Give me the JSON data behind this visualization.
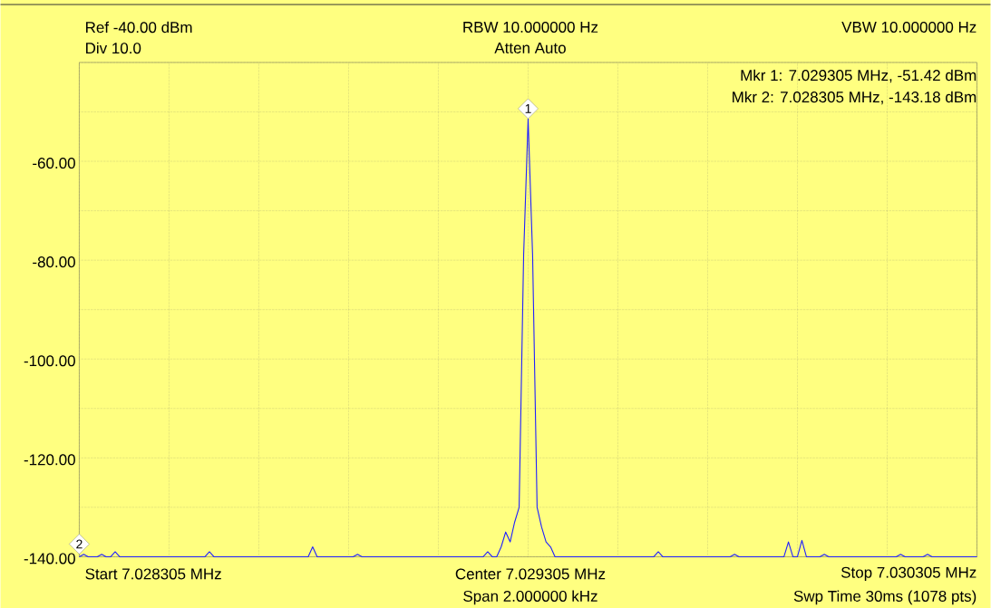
{
  "chart_data": {
    "type": "line",
    "categories": [
      null,
      null,
      null,
      null,
      null,
      null,
      null,
      null,
      null,
      null,
      null,
      null,
      null,
      null,
      null,
      null,
      null,
      null,
      null,
      null,
      null,
      null,
      null,
      null,
      null,
      null,
      null,
      null,
      null,
      null,
      null,
      null,
      null,
      null,
      null,
      null,
      null,
      null,
      null,
      null,
      null,
      null,
      null,
      null,
      null,
      null,
      null,
      null,
      null,
      null,
      null,
      null,
      null,
      null,
      null,
      null,
      null,
      null,
      null,
      null,
      null,
      null,
      null,
      null,
      null,
      null,
      null,
      null,
      null,
      null,
      null,
      null,
      null,
      null,
      null,
      null,
      null,
      null,
      null,
      null,
      null,
      null,
      null,
      null,
      null,
      null,
      null,
      null,
      null,
      null,
      null,
      null,
      null,
      null,
      null,
      null,
      null,
      null,
      null,
      null,
      null,
      null,
      null,
      null,
      null,
      null,
      null,
      null,
      null,
      null,
      null,
      null,
      null,
      null,
      null,
      null,
      null,
      null,
      null,
      null,
      null,
      null,
      null,
      null,
      null,
      null,
      null,
      null,
      null,
      null,
      null,
      null,
      null,
      null,
      null,
      null,
      null,
      null,
      null,
      null,
      null,
      null,
      null,
      null,
      null,
      null,
      null,
      null,
      null,
      null,
      null,
      null,
      null,
      null,
      null,
      null,
      null,
      null,
      null,
      null,
      null,
      null,
      null,
      null,
      null,
      null,
      null,
      null,
      null,
      null,
      null,
      null,
      null,
      null,
      null,
      null,
      null,
      null,
      null,
      null,
      null,
      null,
      null,
      null,
      null,
      null,
      null,
      null,
      null,
      null,
      null,
      null,
      null,
      null,
      null,
      null,
      null,
      null,
      null,
      null,
      null
    ],
    "ylim": [
      -140,
      -40
    ],
    "yticks": [
      {
        "value": -140,
        "label": "-140.00"
      },
      {
        "value": -130,
        "label": null
      },
      {
        "value": -120,
        "label": "-120.00"
      },
      {
        "value": -110,
        "label": null
      },
      {
        "value": -100,
        "label": "-100.00"
      },
      {
        "value": -90,
        "label": null
      },
      {
        "value": -80,
        "label": "-80.00"
      },
      {
        "value": -70,
        "label": null
      },
      {
        "value": -60,
        "label": "-60.00"
      },
      {
        "value": -50,
        "label": null
      },
      {
        "value": -40,
        "label": null
      }
    ],
    "grid": true,
    "line_style": "solid",
    "series": [
      {
        "color": "#2020ff",
        "values": [
          -140,
          -139.5,
          -140,
          -140,
          -140,
          -139.5,
          -140,
          -140,
          -139,
          -140,
          -140,
          -140,
          -140,
          -140,
          -140,
          -140,
          -140,
          -140,
          -140,
          -140,
          -140,
          -140,
          -140,
          -140,
          -140,
          -140,
          -140,
          -140,
          -140,
          -139,
          -140,
          -140,
          -140,
          -140,
          -140,
          -140,
          -140,
          -140,
          -140,
          -140,
          -140,
          -140,
          -140,
          -140,
          -140,
          -140,
          -140,
          -140,
          -140,
          -140,
          -140,
          -140,
          -138,
          -140,
          -140,
          -140,
          -140,
          -140,
          -140,
          -140,
          -140,
          -140,
          -139.5,
          -140,
          -140,
          -140,
          -140,
          -140,
          -140,
          -140,
          -140,
          -140,
          -140,
          -140,
          -140,
          -140,
          -140,
          -140,
          -140,
          -140,
          -140,
          -140,
          -140,
          -140,
          -140,
          -140,
          -140,
          -140,
          -140,
          -140,
          -140,
          -139,
          -140,
          -140,
          -138,
          -135,
          -137,
          -133,
          -130,
          -79,
          -51.42,
          -79,
          -130,
          -134,
          -137,
          -138,
          -140,
          -140,
          -140,
          -140,
          -140,
          -140,
          -140,
          -140,
          -140,
          -140,
          -140,
          -140,
          -140,
          -140,
          -140,
          -140,
          -140,
          -140,
          -140,
          -140,
          -140,
          -140,
          -140,
          -139,
          -140,
          -140,
          -140,
          -140,
          -140,
          -140,
          -140,
          -140,
          -140,
          -140,
          -140,
          -140,
          -140,
          -140,
          -140,
          -140,
          -139.5,
          -140,
          -140,
          -140,
          -140,
          -140,
          -140,
          -140,
          -140,
          -140,
          -140,
          -140,
          -137,
          -140,
          -140,
          -136.7,
          -140,
          -140,
          -140,
          -140,
          -139.5,
          -140,
          -140,
          -140,
          -140,
          -140,
          -140,
          -140,
          -140,
          -140,
          -140,
          -140,
          -140,
          -140,
          -140,
          -140,
          -140,
          -139.5,
          -140,
          -140,
          -140,
          -140,
          -140,
          -139.5,
          -140,
          -140,
          -140,
          -140,
          -140,
          -140,
          -140,
          -140,
          -140,
          -140,
          -140
        ]
      }
    ],
    "annotations": [
      "Ref -40.00 dBm",
      "Div 10.0",
      "RBW 10.000000 Hz",
      "Atten Auto",
      "VBW 10.000000 Hz",
      "Mkr 1: 7.029305 MHz, -51.42 dBm",
      "Mkr 2: 7.028305 MHz, -143.18 dBm",
      "Start 7.028305 MHz",
      "Center 7.029305 MHz",
      "Span 2.000000 kHz",
      "Stop 7.030305 MHz",
      "Swp Time 30ms (1078 pts)",
      {
        "text": "1",
        "y": -51.42
      },
      "2"
    ]
  }
}
